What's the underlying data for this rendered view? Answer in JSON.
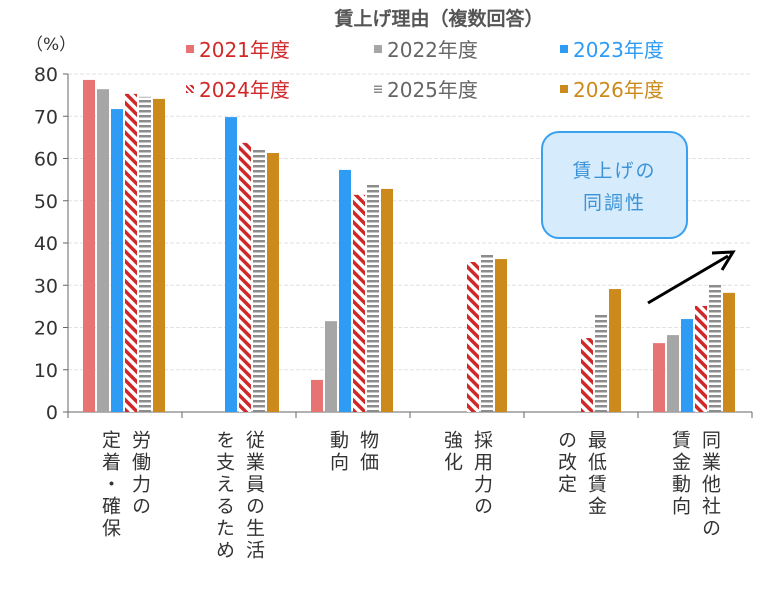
{
  "chart_data": {
    "type": "bar",
    "title": "賃上げ理由（複数回答）",
    "ylabel": "（%）",
    "ylim": [
      0,
      80
    ],
    "yticks": [
      0,
      10,
      20,
      30,
      40,
      50,
      60,
      70,
      80
    ],
    "grid": true,
    "legend_placement": "top",
    "categories": [
      "労働力の\n定着・確保",
      "従業員の生活\nを支えるため",
      "物価\n動向",
      "採用力の\n強化",
      "最低賃金\nの改定",
      "同業他社の\n賃金動向"
    ],
    "series": [
      {
        "name": "2021年度",
        "color": "#e87373",
        "pattern": "solid",
        "values": [
          78.6,
          null,
          7.6,
          null,
          null,
          16.3
        ]
      },
      {
        "name": "2022年度",
        "color": "#a6a6a6",
        "pattern": "solid",
        "values": [
          76.4,
          null,
          21.5,
          null,
          null,
          18.2
        ]
      },
      {
        "name": "2023年度",
        "color": "#2e9bf5",
        "pattern": "solid",
        "values": [
          71.7,
          69.8,
          57.3,
          null,
          null,
          22.0
        ]
      },
      {
        "name": "2024年度",
        "color": "#d02828",
        "pattern": "diagonal-stripes",
        "values": [
          75.3,
          63.7,
          51.4,
          35.5,
          17.5,
          25.1
        ]
      },
      {
        "name": "2025年度",
        "color": "#8c8c8c",
        "pattern": "horizontal-stripes",
        "values": [
          74.6,
          62.2,
          54.2,
          37.4,
          23.2,
          30.1
        ]
      },
      {
        "name": "2026年度",
        "color": "#cc8a1c",
        "pattern": "solid",
        "values": [
          74.1,
          61.3,
          52.8,
          36.2,
          29.1,
          28.2
        ]
      }
    ],
    "legend_text_colors": [
      "#d02828",
      "#666666",
      "#2e9bf5",
      "#d02828",
      "#666666",
      "#cc8a1c"
    ],
    "annotation": "賃上げの\n同調性"
  }
}
